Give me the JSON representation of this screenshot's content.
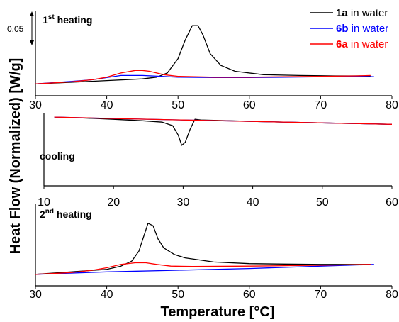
{
  "chart_data": [
    {
      "type": "line",
      "panel": "1st heating",
      "label_main": "1",
      "label_sup": "st",
      "label_rest": " heating",
      "xlim": [
        30,
        80
      ],
      "xticks": [
        30,
        40,
        50,
        60,
        70,
        80
      ],
      "ylim": [
        0,
        0.1
      ],
      "scale_bar": {
        "value": "0.05"
      },
      "series": [
        {
          "id": "1a",
          "color": "#000000",
          "points": [
            [
              30,
              0.014
            ],
            [
              35,
              0.016
            ],
            [
              40,
              0.018
            ],
            [
              45,
              0.02
            ],
            [
              47,
              0.022
            ],
            [
              48.5,
              0.027
            ],
            [
              50,
              0.044
            ],
            [
              51,
              0.066
            ],
            [
              52,
              0.083
            ],
            [
              52.8,
              0.083
            ],
            [
              53.5,
              0.072
            ],
            [
              54.5,
              0.05
            ],
            [
              56,
              0.036
            ],
            [
              58,
              0.029
            ],
            [
              62,
              0.025
            ],
            [
              67,
              0.024
            ],
            [
              72,
              0.0235
            ],
            [
              77,
              0.0235
            ]
          ]
        },
        {
          "id": "6b",
          "color": "#0000ff",
          "points": [
            [
              30,
              0.014
            ],
            [
              35,
              0.017
            ],
            [
              38,
              0.019
            ],
            [
              42,
              0.024
            ],
            [
              45,
              0.024
            ],
            [
              50,
              0.022
            ],
            [
              55,
              0.0215
            ],
            [
              60,
              0.0215
            ],
            [
              65,
              0.022
            ],
            [
              70,
              0.0225
            ],
            [
              75,
              0.023
            ],
            [
              77.5,
              0.0225
            ]
          ]
        },
        {
          "id": "6a",
          "color": "#ff0000",
          "points": [
            [
              30,
              0.014
            ],
            [
              35,
              0.0165
            ],
            [
              38,
              0.019
            ],
            [
              40,
              0.022
            ],
            [
              42,
              0.027
            ],
            [
              44,
              0.03
            ],
            [
              45,
              0.03
            ],
            [
              46,
              0.029
            ],
            [
              48,
              0.025
            ],
            [
              50,
              0.023
            ],
            [
              55,
              0.022
            ],
            [
              60,
              0.022
            ],
            [
              65,
              0.0225
            ],
            [
              70,
              0.023
            ],
            [
              75,
              0.0235
            ],
            [
              77,
              0.024
            ]
          ]
        }
      ]
    },
    {
      "type": "line",
      "panel": "cooling",
      "label": "cooling",
      "xlim": [
        10,
        60
      ],
      "xticks": [
        10,
        20,
        30,
        40,
        50,
        60
      ],
      "ylim": [
        0,
        0.1
      ],
      "series": [
        {
          "id": "1a",
          "color": "#000000",
          "points": [
            [
              11.5,
              0.095
            ],
            [
              15,
              0.094
            ],
            [
              20,
              0.092
            ],
            [
              24,
              0.09
            ],
            [
              27,
              0.088
            ],
            [
              28.5,
              0.083
            ],
            [
              29.3,
              0.07
            ],
            [
              29.8,
              0.056
            ],
            [
              30.3,
              0.06
            ],
            [
              31,
              0.078
            ],
            [
              31.7,
              0.092
            ],
            [
              32.5,
              0.091
            ],
            [
              40,
              0.089
            ],
            [
              50,
              0.087
            ],
            [
              60,
              0.085
            ]
          ]
        },
        {
          "id": "6b",
          "color": "#0000ff",
          "points": [
            [
              11.5,
              0.095
            ],
            [
              20,
              0.093
            ],
            [
              30,
              0.091
            ],
            [
              40,
              0.089
            ],
            [
              50,
              0.087
            ],
            [
              60,
              0.085
            ]
          ]
        },
        {
          "id": "6a",
          "color": "#ff0000",
          "points": [
            [
              11.5,
              0.095
            ],
            [
              20,
              0.093
            ],
            [
              30,
              0.091
            ],
            [
              40,
              0.089
            ],
            [
              50,
              0.087
            ],
            [
              60,
              0.085
            ]
          ]
        }
      ]
    },
    {
      "type": "line",
      "panel": "2nd heating",
      "label_main": "2",
      "label_sup": "nd",
      "label_rest": " heating",
      "xlim": [
        30,
        80
      ],
      "xticks": [
        30,
        40,
        50,
        60,
        70,
        80
      ],
      "ylim": [
        0,
        0.1
      ],
      "series": [
        {
          "id": "1a",
          "color": "#000000",
          "points": [
            [
              30,
              0.014
            ],
            [
              35,
              0.017
            ],
            [
              40,
              0.02
            ],
            [
              42,
              0.024
            ],
            [
              43.5,
              0.03
            ],
            [
              44.5,
              0.042
            ],
            [
              45.3,
              0.063
            ],
            [
              45.8,
              0.076
            ],
            [
              46.5,
              0.073
            ],
            [
              47.2,
              0.057
            ],
            [
              48,
              0.046
            ],
            [
              49.5,
              0.038
            ],
            [
              51,
              0.034
            ],
            [
              55,
              0.029
            ],
            [
              60,
              0.027
            ],
            [
              65,
              0.0265
            ],
            [
              70,
              0.026
            ],
            [
              77,
              0.026
            ]
          ]
        },
        {
          "id": "6b",
          "color": "#0000ff",
          "points": [
            [
              30,
              0.014
            ],
            [
              40,
              0.017
            ],
            [
              50,
              0.019
            ],
            [
              60,
              0.021
            ],
            [
              70,
              0.024
            ],
            [
              77.5,
              0.026
            ]
          ]
        },
        {
          "id": "6a",
          "color": "#ff0000",
          "points": [
            [
              30,
              0.014
            ],
            [
              35,
              0.016
            ],
            [
              38,
              0.019
            ],
            [
              40,
              0.022
            ],
            [
              42,
              0.026
            ],
            [
              44,
              0.028
            ],
            [
              45.5,
              0.028
            ],
            [
              47,
              0.026
            ],
            [
              49,
              0.024
            ],
            [
              52,
              0.0235
            ],
            [
              60,
              0.024
            ],
            [
              70,
              0.025
            ],
            [
              77,
              0.026
            ]
          ]
        }
      ]
    }
  ],
  "axes": {
    "ylabel": "Heat Flow (Normalized) [W/g]",
    "xlabel": "Temperature [°C]"
  },
  "legend": {
    "position": "top-right",
    "entries": [
      {
        "id": "1a",
        "bold": "1a",
        "rest": " in water",
        "line_color": "#000000",
        "text_color": "#000000"
      },
      {
        "id": "6b",
        "bold": "6b",
        "rest": " in water",
        "line_color": "#0000ff",
        "text_color": "#0000ff"
      },
      {
        "id": "6a",
        "bold": "6a",
        "rest": " in water",
        "line_color": "#ff0000",
        "text_color": "#ff0000"
      }
    ]
  }
}
